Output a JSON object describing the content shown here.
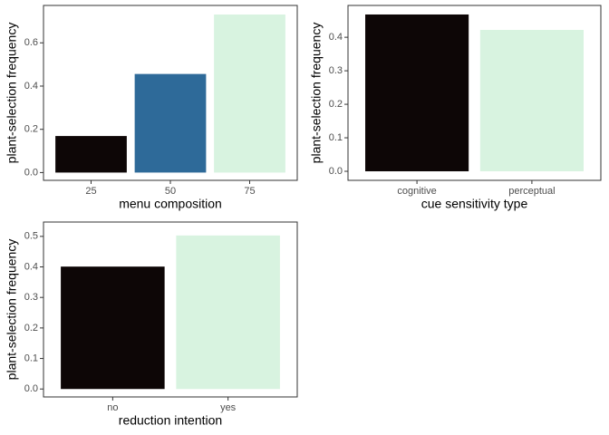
{
  "chart_data": [
    {
      "type": "bar",
      "x_label": "menu composition",
      "y_label": "plant-selection frequency",
      "categories": [
        "25",
        "50",
        "75"
      ],
      "values": [
        0.169,
        0.456,
        0.731
      ],
      "colors": [
        "#0d0606",
        "#2e6a99",
        "#d8f3e0"
      ],
      "ylim": [
        -0.036,
        0.773
      ],
      "yticks": [
        {
          "value": 0,
          "label": "0.0"
        },
        0.2,
        0.4,
        0.6
      ]
    },
    {
      "type": "bar",
      "x_label": "cue sensitivity type",
      "y_label": "plant-selection frequency",
      "categories": [
        "cognitive",
        "perceptual"
      ],
      "values": [
        0.468,
        0.422
      ],
      "colors": [
        "#0d0606",
        "#d8f3e0"
      ],
      "ylim": [
        -0.027,
        0.495
      ],
      "yticks": [
        {
          "value": 0,
          "label": "0.0"
        },
        0.1,
        0.2,
        0.3,
        0.4
      ]
    },
    {
      "type": "bar",
      "x_label": "reduction intention",
      "y_label": "plant-selection frequency",
      "categories": [
        "no",
        "yes"
      ],
      "values": [
        0.401,
        0.503
      ],
      "colors": [
        "#0d0606",
        "#d8f3e0"
      ],
      "ylim": [
        -0.026,
        0.547
      ],
      "yticks": [
        {
          "value": 0,
          "label": "0.0"
        },
        0.1,
        0.2,
        0.3,
        0.4,
        0.5
      ]
    }
  ]
}
